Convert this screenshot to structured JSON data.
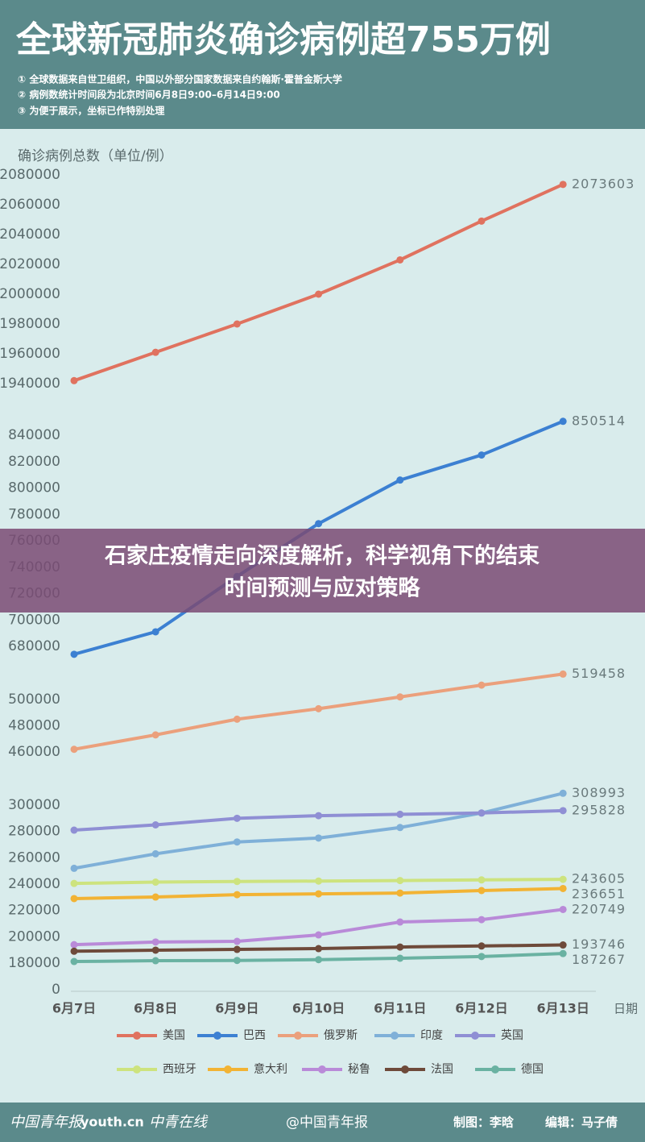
{
  "chart_data": {
    "type": "line",
    "title": "全球新冠肺炎确诊病例超755万例",
    "notes": [
      "① 全球数据来自世卫组织，中国以外部分国家数据来自约翰斯·霍普金斯大学",
      "② 病例数统计时间段为北京时间6月8日9:00–6月14日9:00",
      "③ 为便于展示，坐标已作特别处理"
    ],
    "ylabel": "确诊病例总数（单位/例）",
    "xlabel": "日期",
    "categories": [
      "6月7日",
      "6月8日",
      "6月9日",
      "6月10日",
      "6月11日",
      "6月12日",
      "6月13日"
    ],
    "ylim": [
      0,
      2080000
    ],
    "yticks": [
      2080000,
      2060000,
      2040000,
      2020000,
      2000000,
      1980000,
      1960000,
      1940000,
      840000,
      820000,
      800000,
      780000,
      760000,
      740000,
      720000,
      700000,
      680000,
      500000,
      480000,
      460000,
      300000,
      280000,
      260000,
      240000,
      220000,
      200000,
      180000,
      0
    ],
    "broken_axis": true,
    "series": [
      {
        "name": "美国",
        "color": "#e0725f",
        "values": [
          1942000,
          1961000,
          1980000,
          2000000,
          2023000,
          2049000,
          2073603
        ]
      },
      {
        "name": "巴西",
        "color": "#3c80d2",
        "values": [
          674000,
          691000,
          733000,
          773000,
          806000,
          825000,
          850514
        ]
      },
      {
        "name": "俄罗斯",
        "color": "#eba07c",
        "values": [
          462000,
          473000,
          485000,
          493000,
          502000,
          511000,
          519458
        ]
      },
      {
        "name": "印度",
        "color": "#7fb0d8",
        "values": [
          252000,
          263000,
          272000,
          275000,
          283000,
          294000,
          308993
        ]
      },
      {
        "name": "英国",
        "color": "#8f8fd4",
        "values": [
          281000,
          285000,
          290000,
          292000,
          293000,
          294000,
          295828
        ]
      },
      {
        "name": "西班牙",
        "color": "#cde37e",
        "values": [
          240500,
          241500,
          242000,
          242300,
          242700,
          243200,
          243605
        ]
      },
      {
        "name": "意大利",
        "color": "#f2b334",
        "values": [
          229000,
          230200,
          232000,
          232600,
          233200,
          235100,
          236651
        ]
      },
      {
        "name": "秘鲁",
        "color": "#b98ad8",
        "values": [
          194000,
          196000,
          196500,
          201400,
          211200,
          213000,
          220749
        ]
      },
      {
        "name": "法国",
        "color": "#6e4a3a",
        "values": [
          189000,
          189800,
          190400,
          191000,
          192200,
          193000,
          193746
        ]
      },
      {
        "name": "德国",
        "color": "#6ab2a2",
        "values": [
          181200,
          181800,
          182000,
          182600,
          183700,
          185000,
          187267
        ]
      }
    ]
  },
  "banner": {
    "lines": [
      "石家庄疫情走向深度解析，科学视角下的结束",
      "时间预测与应对策略"
    ]
  },
  "footer": {
    "logos": [
      "中国青年报",
      "youth.cn",
      "中青在线"
    ],
    "weibo": "@中国青年报",
    "credits": [
      "制图：李晗",
      "编辑：马子倩"
    ]
  }
}
